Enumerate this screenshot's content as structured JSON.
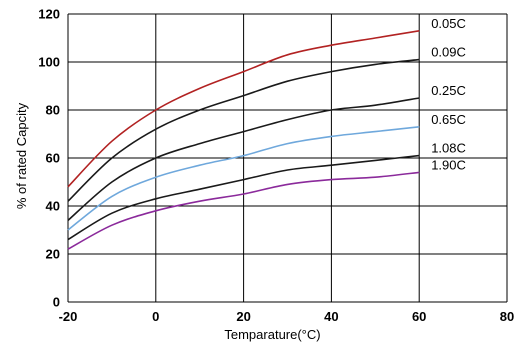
{
  "chart_data": {
    "type": "line",
    "title": "",
    "xlabel": "Temparature(°C)",
    "ylabel": "% of rated Capcity",
    "xlim": [
      -20,
      80
    ],
    "ylim": [
      0,
      120
    ],
    "x_ticks": [
      -20,
      0,
      20,
      40,
      60,
      80
    ],
    "y_ticks": [
      0,
      20,
      40,
      60,
      80,
      100,
      120
    ],
    "grid": true,
    "legend": "inline labels at right end of each line",
    "series": [
      {
        "name": "0.05C",
        "color": "#b22222",
        "points": [
          [
            -20,
            48
          ],
          [
            -10,
            67
          ],
          [
            0,
            80
          ],
          [
            10,
            89
          ],
          [
            20,
            96
          ],
          [
            30,
            103
          ],
          [
            40,
            107
          ],
          [
            50,
            110
          ],
          [
            60,
            113
          ]
        ]
      },
      {
        "name": "0.09C",
        "color": "#1a1a1a",
        "points": [
          [
            -20,
            42
          ],
          [
            -10,
            60
          ],
          [
            0,
            72
          ],
          [
            10,
            80
          ],
          [
            20,
            86
          ],
          [
            30,
            92
          ],
          [
            40,
            96
          ],
          [
            50,
            99
          ],
          [
            60,
            101
          ]
        ]
      },
      {
        "name": "0.25C",
        "color": "#1a1a1a",
        "points": [
          [
            -20,
            34
          ],
          [
            -10,
            50
          ],
          [
            0,
            60
          ],
          [
            10,
            66
          ],
          [
            20,
            71
          ],
          [
            30,
            76
          ],
          [
            40,
            80
          ],
          [
            50,
            82
          ],
          [
            60,
            85
          ]
        ]
      },
      {
        "name": "0.65C",
        "color": "#6fa8dc",
        "points": [
          [
            -20,
            30
          ],
          [
            -10,
            44
          ],
          [
            0,
            52
          ],
          [
            10,
            57
          ],
          [
            20,
            61
          ],
          [
            30,
            66
          ],
          [
            40,
            69
          ],
          [
            50,
            71
          ],
          [
            60,
            73
          ]
        ]
      },
      {
        "name": "1.08C",
        "color": "#1a1a1a",
        "points": [
          [
            -20,
            26
          ],
          [
            -10,
            37
          ],
          [
            0,
            43
          ],
          [
            10,
            47
          ],
          [
            20,
            51
          ],
          [
            30,
            55
          ],
          [
            40,
            57
          ],
          [
            50,
            59
          ],
          [
            60,
            61
          ]
        ]
      },
      {
        "name": "1.90C",
        "color": "#8b2a9b",
        "points": [
          [
            -20,
            22
          ],
          [
            -10,
            32
          ],
          [
            0,
            38
          ],
          [
            10,
            42
          ],
          [
            20,
            45
          ],
          [
            30,
            49
          ],
          [
            40,
            51
          ],
          [
            50,
            52
          ],
          [
            60,
            54
          ]
        ]
      }
    ]
  }
}
